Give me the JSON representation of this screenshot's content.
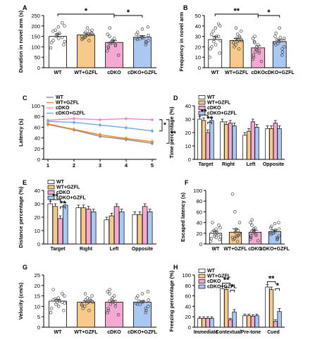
{
  "colors": {
    "wt": "#ffffff",
    "wt_gzfl": "#f7c98b",
    "cdko": "#f4a9d2",
    "cdko_gzfl": "#a9c9f2",
    "wt_line": "#8c8c8c",
    "wt_gzfl_line": "#e8862c",
    "cdko_line": "#f28ac8",
    "cdko_gzfl_line": "#6fa8e8",
    "dots": "#444444"
  },
  "groups": [
    "WT",
    "WT+GZFL",
    "cDKO",
    "cDKO+GZFL"
  ],
  "chart_data": [
    {
      "id": "A",
      "panel_label": "A",
      "type": "bar",
      "ylabel": "Duration in novel arm (s)",
      "ylim": [
        0,
        250
      ],
      "yticks": [
        0,
        50,
        100,
        150,
        200,
        250
      ],
      "categories": [
        "WT",
        "WT+GZFL",
        "cDKO",
        "cDKO+GZFL"
      ],
      "values": [
        150,
        157,
        121,
        146
      ],
      "errors": [
        12,
        9,
        10,
        8
      ],
      "points": [
        [
          95,
          110,
          120,
          140,
          150,
          160,
          165,
          175,
          180,
          195,
          200,
          215,
          130,
          125,
          145
        ],
        [
          130,
          140,
          145,
          150,
          155,
          160,
          165,
          170,
          175,
          190,
          180,
          150,
          135,
          160,
          158
        ],
        [
          60,
          80,
          95,
          100,
          110,
          115,
          120,
          125,
          130,
          140,
          150,
          160,
          190,
          105,
          118
        ],
        [
          110,
          120,
          125,
          130,
          135,
          140,
          145,
          150,
          155,
          160,
          170,
          185,
          195,
          138,
          142
        ]
      ],
      "sig": [
        {
          "from": 0,
          "to": 2,
          "label": "*"
        },
        {
          "from": 2,
          "to": 3,
          "label": "*"
        }
      ]
    },
    {
      "id": "B",
      "panel_label": "B",
      "type": "bar",
      "ylabel": "Frequency in novel arm",
      "ylim": [
        0,
        50
      ],
      "yticks": [
        0,
        10,
        20,
        30,
        40,
        50
      ],
      "categories": [
        "WT",
        "WT+GZFL",
        "cDKO",
        "cDKO+GZFL"
      ],
      "values": [
        27,
        26,
        19,
        25
      ],
      "errors": [
        3,
        2,
        2,
        2
      ],
      "points": [
        [
          10,
          14,
          18,
          22,
          25,
          28,
          30,
          32,
          35,
          38,
          40,
          42,
          20,
          26,
          30
        ],
        [
          18,
          20,
          22,
          24,
          25,
          26,
          27,
          28,
          30,
          32,
          35,
          38,
          24,
          26,
          29
        ],
        [
          6,
          8,
          10,
          12,
          14,
          15,
          17,
          18,
          20,
          22,
          24,
          28,
          30,
          16,
          25
        ],
        [
          12,
          15,
          18,
          20,
          22,
          24,
          25,
          27,
          28,
          30,
          33,
          38,
          26,
          23,
          29
        ]
      ],
      "sig": [
        {
          "from": 0,
          "to": 2,
          "label": "**"
        },
        {
          "from": 2,
          "to": 3,
          "label": "*"
        }
      ]
    },
    {
      "id": "C",
      "panel_label": "C",
      "type": "line",
      "ylabel": "Latency (s)",
      "ylim": [
        0,
        100
      ],
      "yticks": [
        0,
        20,
        40,
        60,
        80,
        100
      ],
      "x": [
        1,
        2,
        3,
        4,
        5
      ],
      "series": [
        {
          "name": "WT",
          "values": [
            65,
            55,
            43,
            37,
            30
          ],
          "errors": [
            4,
            4,
            4,
            4,
            4
          ]
        },
        {
          "name": "WT+GZFL",
          "values": [
            66,
            56,
            46,
            39,
            33
          ],
          "errors": [
            4,
            4,
            4,
            4,
            4
          ]
        },
        {
          "name": "cDKO",
          "values": [
            73,
            76,
            74,
            76,
            74
          ],
          "errors": [
            3,
            3,
            3,
            3,
            3
          ]
        },
        {
          "name": "cDKO+GZFL",
          "values": [
            71,
            69,
            64,
            59,
            53
          ],
          "errors": [
            4,
            4,
            4,
            4,
            4
          ]
        }
      ],
      "sig": [
        "*",
        "**"
      ]
    },
    {
      "id": "D",
      "panel_label": "D",
      "type": "bar",
      "ylabel": "Time percentage (%)",
      "ylim": [
        0,
        40
      ],
      "yticks": [
        0,
        10,
        20,
        30,
        40
      ],
      "categories": [
        "Target",
        "Right",
        "Left",
        "Opposite"
      ],
      "series": [
        {
          "name": "WT",
          "values": [
            30,
            28,
            18,
            23
          ],
          "errors": [
            2,
            2,
            2,
            2
          ]
        },
        {
          "name": "WT+GZFL",
          "values": [
            29,
            26,
            21,
            23
          ],
          "errors": [
            2,
            2,
            2,
            2
          ]
        },
        {
          "name": "cDKO",
          "values": [
            20,
            27,
            28,
            27
          ],
          "errors": [
            2,
            2,
            2,
            2
          ]
        },
        {
          "name": "cDKO+GZFL",
          "values": [
            29,
            25,
            24,
            23
          ],
          "errors": [
            2,
            2,
            2,
            2
          ]
        }
      ],
      "sig": [
        {
          "from": 0,
          "to": 2,
          "label": "**"
        },
        {
          "from": 2,
          "to": 3,
          "label": "**"
        }
      ]
    },
    {
      "id": "E",
      "panel_label": "E",
      "type": "bar",
      "ylabel": "Distance percentage (%)",
      "ylim": [
        0,
        40
      ],
      "yticks": [
        0,
        10,
        20,
        30,
        40
      ],
      "categories": [
        "Target",
        "Right",
        "Left",
        "Opposite"
      ],
      "series": [
        {
          "name": "WT",
          "values": [
            30,
            27,
            18,
            22
          ],
          "errors": [
            2,
            2,
            2,
            2
          ]
        },
        {
          "name": "WT+GZFL",
          "values": [
            28,
            27,
            21,
            22
          ],
          "errors": [
            2,
            2,
            2,
            2
          ]
        },
        {
          "name": "cDKO",
          "values": [
            19,
            26,
            28,
            28
          ],
          "errors": [
            2,
            2,
            2,
            2
          ]
        },
        {
          "name": "cDKO+GZFL",
          "values": [
            29,
            24,
            24,
            24
          ],
          "errors": [
            2,
            2,
            2,
            2
          ]
        }
      ],
      "sig": [
        {
          "from": 0,
          "to": 2,
          "label": "**"
        },
        {
          "from": 2,
          "to": 3,
          "label": "**"
        }
      ]
    },
    {
      "id": "F",
      "panel_label": "F",
      "type": "bar",
      "ylabel": "Escaped latency (s)",
      "ylim": [
        0,
        100
      ],
      "yticks": [
        0,
        20,
        40,
        60,
        80,
        100
      ],
      "categories": [
        "WT",
        "WT+GZFL",
        "cDKO",
        "cDKO+GZFL"
      ],
      "values": [
        20,
        22,
        22,
        23
      ],
      "errors": [
        4,
        6,
        4,
        3
      ],
      "points": [
        [
          5,
          8,
          10,
          12,
          15,
          18,
          20,
          22,
          25,
          28,
          30,
          35,
          40,
          14,
          17
        ],
        [
          5,
          8,
          10,
          12,
          15,
          18,
          20,
          22,
          25,
          28,
          40,
          60,
          93,
          14,
          16
        ],
        [
          6,
          9,
          12,
          15,
          18,
          20,
          22,
          25,
          28,
          30,
          35,
          40,
          45,
          16,
          24
        ],
        [
          8,
          10,
          12,
          15,
          18,
          20,
          22,
          25,
          28,
          30,
          33,
          38,
          40,
          20,
          26
        ]
      ],
      "sig": []
    },
    {
      "id": "G",
      "panel_label": "G",
      "type": "bar",
      "ylabel": "Velocity (cm/s)",
      "ylim": [
        0,
        25
      ],
      "yticks": [
        0,
        5,
        10,
        15,
        20,
        25
      ],
      "categories": [
        "WT",
        "WT+GZFL",
        "cDKO",
        "cDKO+GZFL"
      ],
      "values": [
        12.5,
        12,
        12,
        12
      ],
      "errors": [
        0.8,
        0.6,
        0.8,
        0.6
      ],
      "points": [
        [
          7,
          8,
          9,
          10,
          11,
          12,
          12.5,
          13,
          13.5,
          14,
          15,
          16,
          18,
          11.5,
          12
        ],
        [
          8,
          9,
          10,
          11,
          11.5,
          12,
          12.5,
          13,
          13.5,
          14,
          15,
          16,
          10.5,
          12,
          12.8
        ],
        [
          6,
          7,
          8,
          9,
          10,
          11,
          12,
          13,
          14,
          15,
          16,
          17,
          18,
          11.5,
          12.5
        ],
        [
          7,
          8,
          9,
          10,
          11,
          11.5,
          12,
          12.5,
          13,
          14,
          15,
          16,
          17,
          11,
          12.3
        ]
      ],
      "sig": []
    },
    {
      "id": "H",
      "panel_label": "H",
      "type": "bar",
      "ylabel": "Freezing percentage (%)",
      "ylim": [
        0,
        100
      ],
      "yticks": [
        0,
        20,
        40,
        60,
        80,
        100
      ],
      "categories": [
        "Immediate",
        "Contextual",
        "Pre-tone",
        "Cued"
      ],
      "series": [
        {
          "name": "WT",
          "values": [
            17,
            74,
            22,
            77
          ],
          "errors": [
            3,
            5,
            3,
            5
          ]
        },
        {
          "name": "WT+GZFL",
          "values": [
            17,
            72,
            22,
            72
          ],
          "errors": [
            3,
            5,
            3,
            5
          ]
        },
        {
          "name": "cDKO",
          "values": [
            17,
            14,
            21,
            11
          ],
          "errors": [
            3,
            3,
            3,
            3
          ]
        },
        {
          "name": "cDKO+GZFL",
          "values": [
            17,
            29,
            22,
            30
          ],
          "errors": [
            3,
            5,
            3,
            6
          ]
        }
      ],
      "sig": [
        {
          "cat": 1,
          "from": 0,
          "to": 2,
          "label": "**"
        },
        {
          "cat": 1,
          "from": 2,
          "to": 3,
          "label": "*"
        },
        {
          "cat": 3,
          "from": 0,
          "to": 2,
          "label": "**"
        },
        {
          "cat": 3,
          "from": 2,
          "to": 3,
          "label": "*"
        }
      ]
    }
  ]
}
